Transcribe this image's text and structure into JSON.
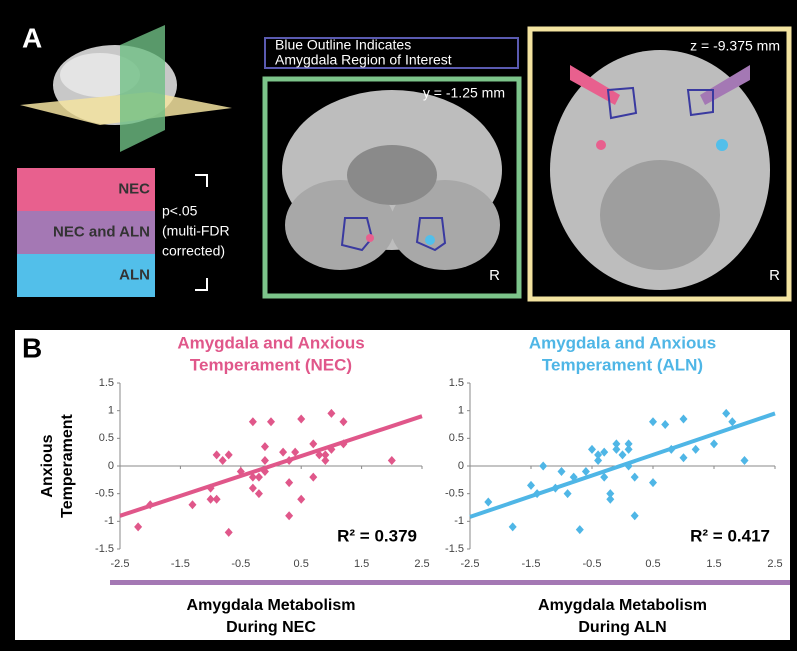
{
  "panel_a": {
    "letter": "A",
    "roi_note": [
      "Blue Outline Indicates",
      "Amygdala Region of Interest"
    ],
    "coronal_label": "y = -1.25 mm",
    "axial_label": "z = -9.375 mm",
    "coronal_side": "R",
    "axial_side": "R",
    "legend": [
      {
        "label": "NEC",
        "color": "#e8608e"
      },
      {
        "label": "NEC and ALN",
        "color": "#a478b4"
      },
      {
        "label": "ALN",
        "color": "#52bfea"
      }
    ],
    "threshold": [
      "p<.05",
      "(multi-FDR",
      "corrected)"
    ]
  },
  "panel_b": {
    "letter": "B"
  },
  "chart_data": [
    {
      "type": "scatter",
      "title": [
        "Amygdala and Anxious",
        "Temperament (NEC)"
      ],
      "ylabel": [
        "Anxious",
        "Temperament"
      ],
      "xlabel": [
        "Amygdala Metabolism",
        "During NEC"
      ],
      "annotation": "R² = 0.379",
      "color": "#e0578a",
      "x": [
        -2.2,
        -2.0,
        -1.3,
        -1.0,
        -1.0,
        -0.9,
        -0.8,
        -0.7,
        -0.9,
        -0.7,
        -0.5,
        -0.3,
        -0.3,
        -0.2,
        -0.2,
        -0.1,
        -0.1,
        -0.1,
        0.0,
        -0.3,
        0.2,
        0.3,
        0.3,
        0.4,
        0.3,
        0.5,
        0.5,
        0.7,
        0.8,
        0.9,
        0.9,
        1.0,
        1.0,
        1.2,
        1.2,
        2.0,
        0.7
      ],
      "values": [
        -1.1,
        -0.7,
        -0.7,
        -0.4,
        -0.6,
        0.2,
        0.1,
        0.2,
        -0.6,
        -1.2,
        -0.1,
        -0.4,
        -0.2,
        -0.5,
        -0.2,
        -0.1,
        0.1,
        0.35,
        0.8,
        0.8,
        0.25,
        0.1,
        -0.3,
        0.25,
        -0.9,
        0.85,
        -0.6,
        0.4,
        0.2,
        0.2,
        0.1,
        0.3,
        0.95,
        0.4,
        0.8,
        0.1,
        -0.2
      ],
      "trendline": {
        "x": [
          -2.5,
          2.5
        ],
        "y": [
          -0.9,
          0.9
        ]
      },
      "xlim": [
        -2.5,
        2.5
      ],
      "ylim": [
        -1.5,
        1.5
      ],
      "xticks": [
        -2.5,
        -1.5,
        -0.5,
        0.5,
        1.5,
        2.5
      ],
      "yticks": [
        -1.5,
        -1,
        -0.5,
        0,
        0.5,
        1,
        1.5
      ]
    },
    {
      "type": "scatter",
      "title": [
        "Amygdala and Anxious",
        "Temperament (ALN)"
      ],
      "xlabel": [
        "Amygdala Metabolism",
        "During ALN"
      ],
      "annotation": "R² = 0.417",
      "color": "#4fb6e6",
      "x": [
        -2.2,
        -1.8,
        -1.5,
        -1.4,
        -1.3,
        -1.1,
        -1.0,
        -0.9,
        -0.8,
        -0.7,
        -0.6,
        -0.5,
        -0.4,
        -0.3,
        -0.3,
        -0.2,
        -0.2,
        -0.1,
        -0.1,
        0.0,
        0.1,
        0.1,
        0.1,
        0.2,
        0.2,
        0.5,
        0.5,
        0.7,
        0.8,
        1.0,
        1.0,
        1.2,
        1.5,
        1.7,
        1.8,
        2.0,
        -0.4
      ],
      "values": [
        -0.65,
        -1.1,
        -0.35,
        -0.5,
        0,
        -0.4,
        -0.1,
        -0.5,
        -0.2,
        -1.15,
        -0.1,
        0.3,
        0.2,
        -0.2,
        0.25,
        -0.6,
        -0.5,
        0.4,
        0.3,
        0.2,
        0.3,
        0,
        0.4,
        -0.2,
        -0.9,
        0.8,
        -0.3,
        0.75,
        0.3,
        0.15,
        0.85,
        0.3,
        0.4,
        0.95,
        0.8,
        0.1,
        0.1
      ],
      "trendline": {
        "x": [
          -2.5,
          2.5
        ],
        "y": [
          -0.92,
          0.95
        ]
      },
      "xlim": [
        -2.5,
        2.5
      ],
      "ylim": [
        -1.5,
        1.5
      ],
      "xticks": [
        -2.5,
        -1.5,
        -0.5,
        0.5,
        1.5,
        2.5
      ],
      "yticks": [
        -1.5,
        -1,
        -0.5,
        0,
        0.5,
        1,
        1.5
      ]
    }
  ]
}
